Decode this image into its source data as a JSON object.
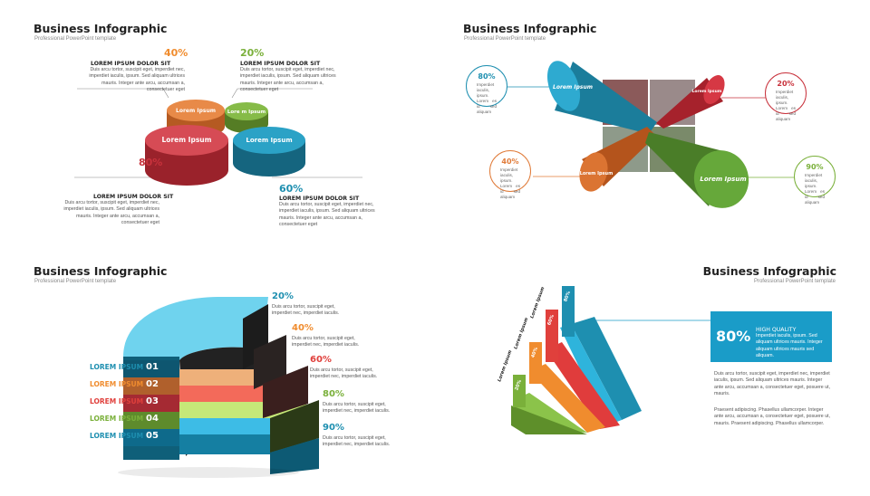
{
  "slides": {
    "tl": {
      "title": "Business Infographic",
      "subtitle": "Professional PowerPoint template",
      "discs": [
        {
          "label": "Lorem Ipsum",
          "color": "#e07b39"
        },
        {
          "label": "Lore m Ipsum",
          "color": "#7ab03a"
        },
        {
          "label": "Lorem Ipsum",
          "color": "#c8323c"
        },
        {
          "label": "Lorem Ipsum",
          "color": "#1e8fb0"
        }
      ],
      "callouts": [
        {
          "pct": "40%",
          "color": "#f08c2e",
          "heading": "LOREM IPSUM DOLOR SIT",
          "body": "Duis arcu tortor, suscipit eget, imperdiet nec, imperdiet iaculis, ipsum. Sed aliquam ultrices mauris. Integer ante arcu, accumsan a, consectetuer eget"
        },
        {
          "pct": "20%",
          "color": "#7ab03a",
          "heading": "LOREM IPSUM DOLOR SIT",
          "body": "Duis arcu tortor, suscipit eget, imperdiet nec, imperdiet iaculis, ipsum. Sed aliquam ultrices mauris. Integer ante arcu, accumsan a, consectetuer eget"
        },
        {
          "pct": "80%",
          "color": "#c8323c",
          "heading": "LOREM IPSUM DOLOR SIT",
          "body": "Duis arcu tortor, suscipit eget, imperdiet nec, imperdiet iaculis, ipsum. Sed aliquam ultrices mauris. Integer ante arcu, accumsan a, consectetuer eget"
        },
        {
          "pct": "60%",
          "color": "#1e8fb0",
          "heading": "LOREM IPSUM DOLOR SIT",
          "body": "Duis arcu tortor, suscipit eget, imperdiet nec, imperdiet iaculis, ipsum. Sed aliquam ultrices mauris. Integer ante arcu, accumsan a, consectetuer eget"
        }
      ]
    },
    "tr": {
      "title": "Business Infographic",
      "subtitle": "Professional PowerPoint template",
      "cylinders": [
        {
          "label": "Lorem Ipsum",
          "color": "#1e8fb0"
        },
        {
          "label": "Lorem Ipsum",
          "color": "#c8323c"
        },
        {
          "label": "Lorem Ipsum",
          "color": "#d2692a"
        },
        {
          "label": "Lorem Ipsum",
          "color": "#5f9e33"
        }
      ],
      "bubbles": [
        {
          "pct": "80%",
          "color": "#1e8fb0",
          "body": "Imperdiet iaculis, ipsum. Lorem es id sed aliquam"
        },
        {
          "pct": "20%",
          "color": "#c8323c",
          "body": "Imperdiet iaculis, ipsum. Lorem es id sed aliquam"
        },
        {
          "pct": "40%",
          "color": "#e07b39",
          "body": "Imperdiet iaculis, ipsum. Lorem es id sed aliquam"
        },
        {
          "pct": "90%",
          "color": "#7ab03a",
          "body": "Imperdiet iaculis, ipsum. Lorem es id sed aliquam"
        }
      ]
    },
    "bl": {
      "title": "Business Infographic",
      "subtitle": "Professional PowerPoint template",
      "rows": [
        {
          "label": "LOREM IPSUM",
          "num": "01",
          "color": "#1e8fb0"
        },
        {
          "label": "LOREM IPSUM",
          "num": "02",
          "color": "#f08c2e"
        },
        {
          "label": "LOREM IPSUM",
          "num": "03",
          "color": "#e0403c"
        },
        {
          "label": "LOREM IPSUM",
          "num": "04",
          "color": "#7ab03a"
        },
        {
          "label": "LOREM IPSUM",
          "num": "05",
          "color": "#1e8fb0"
        }
      ],
      "callouts": [
        {
          "pct": "20%",
          "color": "#1e8fb0",
          "body": "Duis arcu tortor, suscipit eget, imperdiet nec, imperdiet iaculis."
        },
        {
          "pct": "40%",
          "color": "#f08c2e",
          "body": "Duis arcu tortor, suscipit eget, imperdiet nec, imperdiet iaculis."
        },
        {
          "pct": "60%",
          "color": "#e0403c",
          "body": "Duis arcu tortor, suscipit eget, imperdiet nec, imperdiet iaculis."
        },
        {
          "pct": "80%",
          "color": "#7ab03a",
          "body": "Duis arcu tortor, suscipit eget, imperdiet nec, imperdiet iaculis."
        },
        {
          "pct": "90%",
          "color": "#1e8fb0",
          "body": "Duis arcu tortor, suscipit eget, imperdiet nec, imperdiet iaculis."
        }
      ]
    },
    "br": {
      "title": "Business Infographic",
      "subtitle": "Professional PowerPoint template",
      "bars": [
        {
          "pct": "20%",
          "label": "Lorem Ipsum",
          "color": "#7ab03a"
        },
        {
          "pct": "40%",
          "label": "Lorem Ipsum",
          "color": "#f08c2e"
        },
        {
          "pct": "60%",
          "label": "Lorem Ipsum",
          "color": "#e0403c"
        },
        {
          "pct": "80%",
          "label": "",
          "color": "#1e8fb0"
        }
      ],
      "quality": {
        "pct": "80%",
        "heading": "HIGH QUALITY",
        "body": "Imperdiet iaculis, ipsum. Sed aliquam ultrices mauris. Integer aliquam ultrices mauris sed aliquam."
      },
      "paragraphs": [
        "Duis arcu tortor, suscipit eget, imperdiet nec, imperdiet iaculis, ipsum. Sed aliquam ultrices mauris. Integer ante arcu, accumsan a, consectetuer eget, posuere ut, mauris.",
        "Praesent adipiscing. Phasellus ullamcorper. Integer ante arcu, accumsan a, consectetuer eget, posuere ut, mauris. Praesent adipiscing. Phasellus ullamcorper."
      ]
    }
  }
}
